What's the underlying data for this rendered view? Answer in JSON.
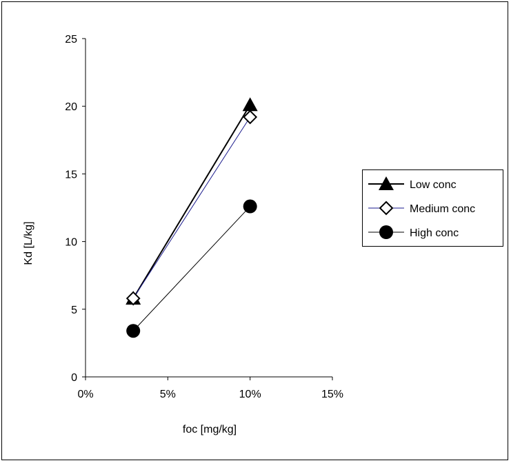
{
  "chart_data": {
    "type": "scatter",
    "title": "",
    "xlabel": "foc [mg/kg]",
    "ylabel": "Kd [L/kg]",
    "xlim": [
      0,
      0.15
    ],
    "ylim": [
      0,
      25
    ],
    "x_ticks": [
      0,
      0.05,
      0.1,
      0.15
    ],
    "x_tick_labels": [
      "0%",
      "5%",
      "10%",
      "15%"
    ],
    "y_ticks": [
      0,
      5,
      10,
      15,
      20,
      25
    ],
    "y_tick_labels": [
      "0",
      "5",
      "10",
      "15",
      "20",
      "25"
    ],
    "grid": false,
    "legend_position": "right",
    "series": [
      {
        "name": "Low conc",
        "marker": "triangle",
        "color": "#000000",
        "line_width": 2,
        "x": [
          0.029,
          0.1
        ],
        "y": [
          5.8,
          20.1
        ]
      },
      {
        "name": "Medium conc",
        "marker": "diamond-open",
        "color": "#1a1a8c",
        "line_width": 1,
        "x": [
          0.029,
          0.1
        ],
        "y": [
          5.8,
          19.2
        ]
      },
      {
        "name": "High conc",
        "marker": "circle",
        "color": "#000000",
        "line_width": 1,
        "x": [
          0.029,
          0.1
        ],
        "y": [
          3.4,
          12.6
        ]
      }
    ]
  }
}
